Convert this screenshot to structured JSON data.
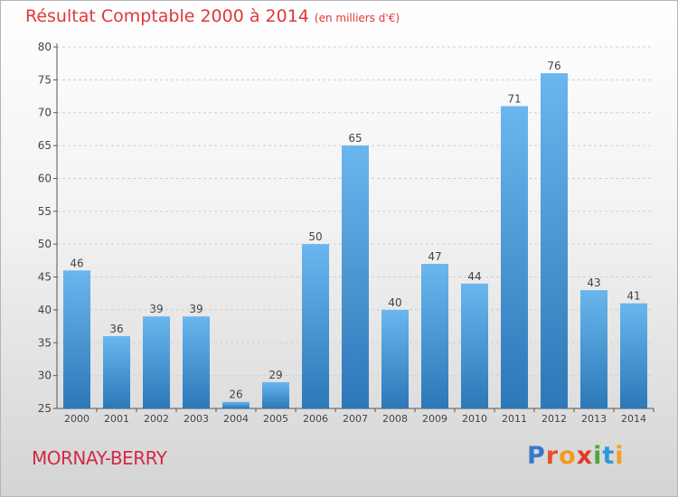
{
  "header": {
    "title": "Résultat Comptable 2000 à 2014",
    "subtitle": "(en milliers d'€)"
  },
  "footer": {
    "place": "MORNAY-BERRY",
    "brand_letters": [
      "P",
      "r",
      "o",
      "x",
      "i",
      "t",
      "i"
    ],
    "brand_colors": [
      "#3a78c8",
      "#e8502a",
      "#f29a1f",
      "#e23a2a",
      "#4aa83c",
      "#2b9ad6",
      "#f0a020"
    ]
  },
  "colors": {
    "title": "#e0383a",
    "place": "#d22a46",
    "bar_top": "#6ab6ee",
    "bar_bottom": "#2c78b8"
  },
  "chart_data": {
    "type": "bar",
    "title": "Résultat Comptable 2000 à 2014",
    "subtitle": "(en milliers d'€)",
    "xlabel": "",
    "ylabel": "",
    "categories": [
      "2000",
      "2001",
      "2002",
      "2003",
      "2004",
      "2005",
      "2006",
      "2007",
      "2008",
      "2009",
      "2010",
      "2011",
      "2012",
      "2013",
      "2014"
    ],
    "values": [
      46,
      36,
      39,
      39,
      26,
      29,
      50,
      65,
      40,
      47,
      44,
      71,
      76,
      43,
      41
    ],
    "ylim": [
      25,
      80
    ],
    "yticks": [
      25,
      30,
      35,
      40,
      45,
      50,
      55,
      60,
      65,
      70,
      75,
      80
    ],
    "grid": true
  }
}
